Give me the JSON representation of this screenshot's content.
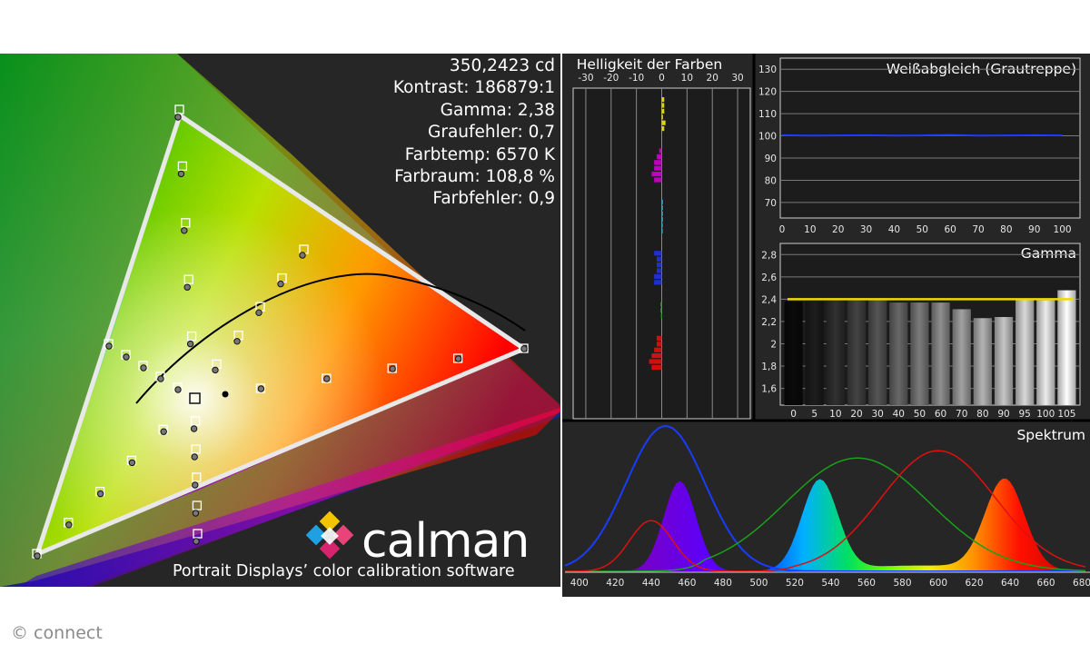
{
  "stats": {
    "luminance": "350,2423 cd",
    "contrast": "Kontrast: 186879:1",
    "gamma": "Gamma: 2,38",
    "gray_error": "Graufehler: 0,7",
    "color_temp": "Farbtemp: 6570 K",
    "gamut": "Farbraum: 108,8 %",
    "color_error": "Farbfehler: 0,9"
  },
  "branding": {
    "name": "calman",
    "tagline": "Portrait Displays’ color calibration software",
    "copyright": "© connect"
  },
  "colors": {
    "panel_bg": "#262626",
    "yellow_line": "#f0d800",
    "blue_line": "#1a3cff",
    "green_line": "#1aa01a",
    "red_line": "#e01010"
  },
  "chart_data": [
    {
      "id": "cie-chromaticity",
      "type": "scatter",
      "title": "",
      "gamut_target": [
        [
          0.64,
          0.33
        ],
        [
          0.3,
          0.6
        ],
        [
          0.15,
          0.06
        ]
      ],
      "gamut_measured": [
        [
          0.682,
          0.314
        ],
        [
          0.287,
          0.645
        ],
        [
          0.155,
          0.043
        ]
      ],
      "white_point": [
        0.313,
        0.329
      ]
    },
    {
      "id": "color-brightness",
      "type": "bar",
      "title": "Helligkeit der Farben",
      "xticks": [
        "-30",
        "-20",
        "-10",
        "0",
        "10",
        "20",
        "30"
      ],
      "xlim": [
        -35,
        35
      ],
      "bars": [
        {
          "color": "#d8d800",
          "values": [
            1,
            1,
            1,
            0.5,
            1.5,
            1
          ]
        },
        {
          "color": "#c000c0",
          "values": [
            -1,
            -2,
            -3,
            -3,
            -4,
            -3
          ]
        },
        {
          "color": "#00b0c0",
          "values": [
            0.5,
            0.5,
            0.5,
            0.5,
            0.3,
            0.3
          ]
        },
        {
          "color": "#2030d0",
          "values": [
            -3,
            -2,
            -2,
            -2,
            -3,
            -3
          ]
        },
        {
          "color": "#10a010",
          "values": [
            -0.5,
            -0.5,
            -0.3
          ]
        },
        {
          "color": "#d01010",
          "values": [
            -2,
            -2,
            -3,
            -4,
            -5,
            -4
          ]
        }
      ]
    },
    {
      "id": "white-balance",
      "type": "line",
      "title": "Weißabgleich (Grautreppe)",
      "x": [
        0,
        10,
        20,
        30,
        40,
        50,
        60,
        70,
        80,
        90,
        100
      ],
      "yticks": [
        "70",
        "80",
        "90",
        "100",
        "110",
        "120",
        "130"
      ],
      "ylim": [
        63,
        135
      ],
      "series": [
        {
          "values": [
            100.3,
            100.1,
            100.2,
            100.3,
            100.1,
            100.2,
            100.4,
            100.1,
            100.2,
            100.3,
            100.2
          ]
        }
      ]
    },
    {
      "id": "gamma-chart",
      "type": "bar",
      "title": "Gamma",
      "categories": [
        "0",
        "5",
        "10",
        "20",
        "30",
        "40",
        "50",
        "60",
        "70",
        "80",
        "90",
        "95",
        "100",
        "105"
      ],
      "values": [
        2.38,
        2.38,
        2.41,
        2.41,
        2.4,
        2.37,
        2.37,
        2.37,
        2.31,
        2.23,
        2.24,
        2.4,
        2.39,
        2.48
      ],
      "target": 2.4,
      "yticks": [
        "1,6",
        "1,8",
        "2",
        "2,2",
        "2,4",
        "2,6",
        "2,8"
      ],
      "ylim": [
        1.45,
        2.9
      ]
    },
    {
      "id": "spectrum",
      "type": "line",
      "title": "Spektrum",
      "xticks": [
        "400",
        "420",
        "440",
        "460",
        "480",
        "500",
        "520",
        "540",
        "560",
        "580",
        "600",
        "620",
        "640",
        "660",
        "680"
      ],
      "xlim": [
        392,
        683
      ]
    }
  ]
}
